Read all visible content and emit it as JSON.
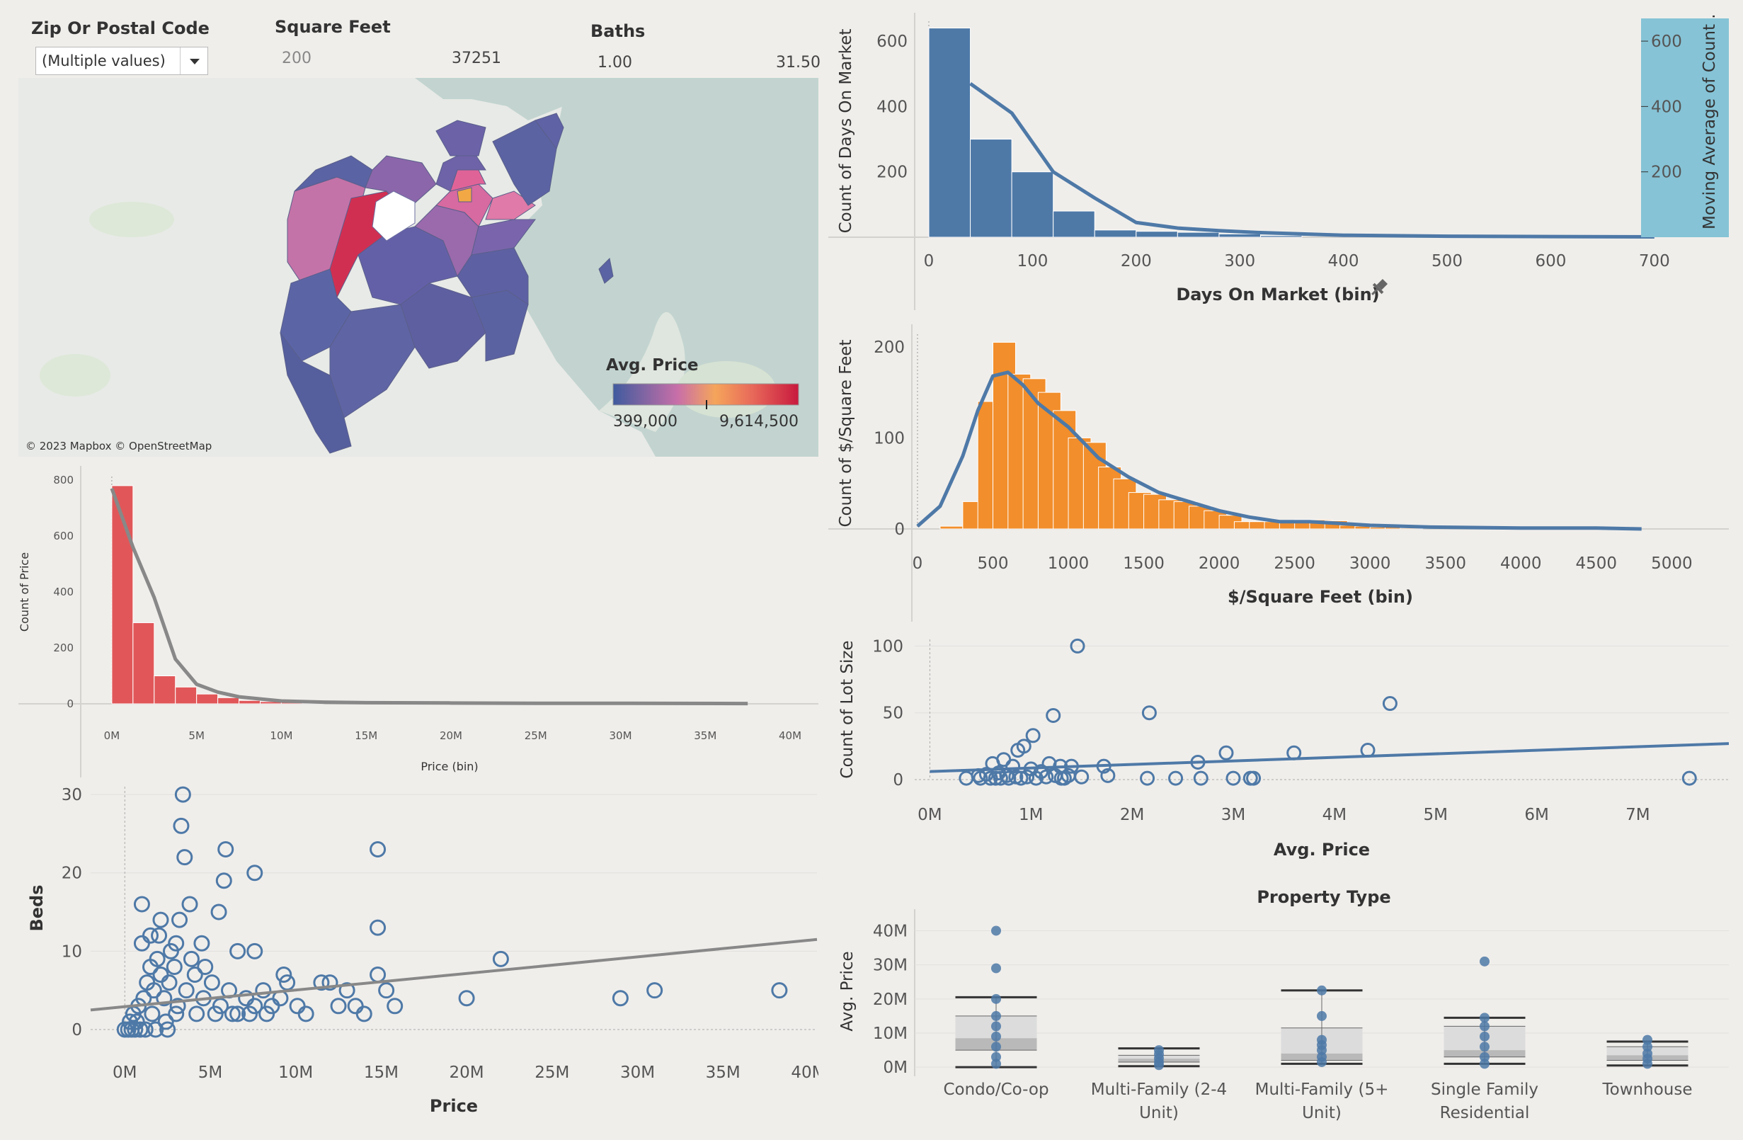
{
  "filters": {
    "zip": {
      "title": "Zip Or Postal Code",
      "value": "(Multiple values)"
    },
    "sqft": {
      "title": "Square Feet",
      "min": "200",
      "max": "37251"
    },
    "baths": {
      "title": "Baths",
      "min": "1.00",
      "max": "31.50"
    }
  },
  "map": {
    "legend_title": "Avg. Price",
    "legend_min": "399,000",
    "legend_max": "9,614,500",
    "attribution": "© 2023 Mapbox © OpenStreetMap",
    "colors": {
      "water": "#c3d4d0",
      "land": "#e9ebe8",
      "low": "#4b5e9c",
      "mid": "#c96fa8",
      "high": "#d42c4d",
      "orange": "#f2a844"
    }
  },
  "chart_data": [
    {
      "id": "days",
      "type": "bar",
      "xlabel": "Days On Market (bin)",
      "ylabel": "Count of Days On Market",
      "right_axis_label": "Moving Average of Count ..",
      "x": [
        0,
        40,
        80,
        120,
        160,
        200,
        240,
        280,
        320
      ],
      "values": [
        640,
        300,
        200,
        80,
        22,
        18,
        15,
        10,
        5
      ],
      "line": {
        "x": [
          40,
          80,
          120,
          160,
          200,
          240,
          280,
          320,
          400,
          500,
          600,
          700
        ],
        "y": [
          470,
          380,
          200,
          120,
          45,
          28,
          20,
          14,
          6,
          3,
          2,
          1
        ]
      },
      "xlim": [
        0,
        750
      ],
      "ylim": [
        0,
        650
      ],
      "xticks": [
        "0",
        "100",
        "200",
        "300",
        "400",
        "500",
        "600",
        "700"
      ],
      "yticks": [
        "200",
        "400",
        "600"
      ],
      "color": "#4e79a7"
    },
    {
      "id": "ppsf",
      "type": "bar",
      "xlabel": "$/Square Feet (bin)",
      "ylabel": "Count of $/Square Feet",
      "x": [
        150,
        300,
        400,
        500,
        600,
        700,
        800,
        900,
        1000,
        1100,
        1200,
        1300,
        1400,
        1500,
        1600,
        1700,
        1800,
        1900,
        2000,
        2100,
        2200,
        2300,
        2400,
        2500,
        2600,
        2700,
        2800,
        2900,
        3000,
        3100,
        3200
      ],
      "values": [
        3,
        30,
        140,
        205,
        170,
        165,
        150,
        130,
        100,
        95,
        68,
        55,
        40,
        38,
        32,
        30,
        25,
        20,
        15,
        8,
        8,
        8,
        8,
        10,
        10,
        9,
        4,
        3,
        2,
        2,
        1
      ],
      "line": {
        "x": [
          0,
          150,
          300,
          400,
          500,
          600,
          700,
          800,
          1000,
          1200,
          1400,
          1600,
          1800,
          2000,
          2200,
          2400,
          2600,
          2800,
          3000,
          3400,
          4000,
          4500,
          4800
        ],
        "y": [
          3,
          25,
          80,
          130,
          168,
          172,
          158,
          138,
          112,
          78,
          57,
          40,
          30,
          20,
          13,
          8,
          8,
          6,
          4,
          2,
          1,
          1,
          0
        ]
      },
      "xlim": [
        -150,
        5050
      ],
      "ylim": [
        0,
        210
      ],
      "xticks": [
        "0",
        "500",
        "1000",
        "1500",
        "2000",
        "2500",
        "3000",
        "3500",
        "4000",
        "4500",
        "5000"
      ],
      "yticks": [
        "0",
        "100",
        "200"
      ],
      "color": "#f28e2b"
    },
    {
      "id": "price",
      "type": "bar",
      "xlabel": "Price (bin)",
      "ylabel": "Count of Price",
      "x": [
        0,
        1250000,
        2500000,
        3750000,
        5000000,
        6250000,
        7500000,
        8750000,
        10000000,
        11250000
      ],
      "values": [
        780,
        290,
        100,
        60,
        35,
        22,
        12,
        8,
        5,
        3
      ],
      "line": {
        "x": [
          0,
          1250000,
          2500000,
          3750000,
          5000000,
          6250000,
          7500000,
          10000000,
          12500000,
          15000000,
          20000000,
          25000000,
          30000000,
          37500000
        ],
        "y": [
          770,
          560,
          380,
          160,
          70,
          42,
          25,
          10,
          6,
          4,
          3,
          2,
          2,
          1
        ]
      },
      "xlim": [
        -2000000,
        41000000
      ],
      "ylim": [
        0,
        800
      ],
      "xticks": [
        "0M",
        "5M",
        "10M",
        "15M",
        "20M",
        "25M",
        "30M",
        "35M",
        "40M"
      ],
      "yticks": [
        "0",
        "200",
        "400",
        "600",
        "800"
      ],
      "color": "#e15759"
    },
    {
      "id": "lot",
      "type": "scatter",
      "xlabel": "Avg. Price",
      "ylabel": "Count of Lot Size",
      "points": [
        [
          1460000,
          100
        ],
        [
          1220000,
          48
        ],
        [
          2170000,
          50
        ],
        [
          4550000,
          57
        ],
        [
          1020000,
          33
        ],
        [
          930000,
          25
        ],
        [
          870000,
          22
        ],
        [
          4330000,
          22
        ],
        [
          3600000,
          20
        ],
        [
          2930000,
          20
        ],
        [
          730000,
          15
        ],
        [
          620000,
          12
        ],
        [
          2650000,
          13
        ],
        [
          1180000,
          12
        ],
        [
          1290000,
          10
        ],
        [
          1400000,
          10
        ],
        [
          1720000,
          10
        ],
        [
          820000,
          10
        ],
        [
          1000000,
          8
        ],
        [
          1100000,
          6
        ],
        [
          680000,
          5
        ],
        [
          560000,
          4
        ],
        [
          480000,
          3
        ],
        [
          760000,
          3
        ],
        [
          1240000,
          3
        ],
        [
          1370000,
          3
        ],
        [
          1760000,
          3
        ],
        [
          1500000,
          2
        ],
        [
          360000,
          1
        ],
        [
          500000,
          1
        ],
        [
          600000,
          1
        ],
        [
          650000,
          1
        ],
        [
          700000,
          1
        ],
        [
          780000,
          1
        ],
        [
          850000,
          2
        ],
        [
          900000,
          1
        ],
        [
          960000,
          2
        ],
        [
          1050000,
          1
        ],
        [
          1150000,
          2
        ],
        [
          1300000,
          1
        ],
        [
          1330000,
          1
        ],
        [
          2150000,
          1
        ],
        [
          2430000,
          1
        ],
        [
          2680000,
          1
        ],
        [
          3000000,
          1
        ],
        [
          3170000,
          1
        ],
        [
          3200000,
          1
        ],
        [
          7510000,
          1
        ]
      ],
      "trend": {
        "x": [
          0,
          7900000
        ],
        "y": [
          6,
          27
        ]
      },
      "xlim": [
        -150000,
        7900000
      ],
      "ylim": [
        0,
        105
      ],
      "xticks": [
        "0M",
        "1M",
        "2M",
        "3M",
        "4M",
        "5M",
        "6M",
        "7M"
      ],
      "yticks": [
        "0",
        "50",
        "100"
      ],
      "color": "#4e79a7"
    },
    {
      "id": "beds",
      "type": "scatter",
      "xlabel": "Price",
      "ylabel": "Beds",
      "points": [
        [
          3400000,
          30
        ],
        [
          3300000,
          26
        ],
        [
          3500000,
          22
        ],
        [
          5900000,
          23
        ],
        [
          14800000,
          23
        ],
        [
          5800000,
          19
        ],
        [
          7600000,
          20
        ],
        [
          14800000,
          13
        ],
        [
          22000000,
          9
        ],
        [
          14800000,
          7
        ],
        [
          15300000,
          5
        ],
        [
          15800000,
          3
        ],
        [
          20000000,
          4
        ],
        [
          29000000,
          4
        ],
        [
          31000000,
          5
        ],
        [
          38300000,
          5
        ],
        [
          1000000,
          16
        ],
        [
          3800000,
          16
        ],
        [
          5500000,
          15
        ],
        [
          2100000,
          14
        ],
        [
          3200000,
          14
        ],
        [
          1500000,
          12
        ],
        [
          4500000,
          11
        ],
        [
          6600000,
          10
        ],
        [
          7600000,
          10
        ],
        [
          9500000,
          6
        ],
        [
          9300000,
          7
        ],
        [
          11500000,
          6
        ],
        [
          12000000,
          6
        ],
        [
          13000000,
          5
        ],
        [
          12500000,
          3
        ],
        [
          13500000,
          3
        ],
        [
          14000000,
          2
        ],
        [
          300000,
          1
        ],
        [
          500000,
          2
        ],
        [
          800000,
          3
        ],
        [
          1100000,
          4
        ],
        [
          1300000,
          6
        ],
        [
          1500000,
          8
        ],
        [
          1700000,
          5
        ],
        [
          1900000,
          9
        ],
        [
          2100000,
          7
        ],
        [
          2300000,
          4
        ],
        [
          2600000,
          6
        ],
        [
          2900000,
          8
        ],
        [
          3100000,
          3
        ],
        [
          3600000,
          5
        ],
        [
          4100000,
          7
        ],
        [
          4600000,
          4
        ],
        [
          5100000,
          6
        ],
        [
          5600000,
          3
        ],
        [
          6100000,
          5
        ],
        [
          6600000,
          2
        ],
        [
          7100000,
          4
        ],
        [
          7600000,
          3
        ],
        [
          8100000,
          5
        ],
        [
          8600000,
          3
        ],
        [
          9100000,
          4
        ],
        [
          10100000,
          3
        ],
        [
          10600000,
          2
        ],
        [
          0,
          0
        ],
        [
          200000,
          0
        ],
        [
          400000,
          0
        ],
        [
          600000,
          0
        ],
        [
          900000,
          0
        ],
        [
          1200000,
          0
        ],
        [
          1800000,
          0
        ],
        [
          2500000,
          0
        ],
        [
          700000,
          1
        ],
        [
          1600000,
          2
        ],
        [
          2400000,
          1
        ],
        [
          3000000,
          2
        ],
        [
          4200000,
          2
        ],
        [
          5300000,
          2
        ],
        [
          6300000,
          2
        ],
        [
          7300000,
          2
        ],
        [
          8300000,
          2
        ],
        [
          1000000,
          11
        ],
        [
          2000000,
          12
        ],
        [
          2700000,
          10
        ],
        [
          3000000,
          11
        ],
        [
          3900000,
          9
        ],
        [
          4700000,
          8
        ]
      ],
      "trend": {
        "x": [
          -2000000,
          40500000
        ],
        "y": [
          2.5,
          11.5
        ]
      },
      "xlim": [
        -2000000,
        40500000
      ],
      "ylim": [
        0,
        31
      ],
      "xticks": [
        "0M",
        "5M",
        "10M",
        "15M",
        "20M",
        "25M",
        "30M",
        "35M",
        "40M"
      ],
      "yticks": [
        "0",
        "10",
        "20",
        "30"
      ],
      "color": "#4e79a7"
    },
    {
      "id": "boxplot",
      "type": "box",
      "title": "Property Type",
      "ylabel": "Avg. Price",
      "categories": [
        "Condo/Co-op",
        "Multi-Family (2-4 Unit)",
        "Multi-Family (5+ Unit)",
        "Single Family Residential",
        "Townhouse"
      ],
      "boxes": [
        {
          "whisker_low": 0,
          "q1": 5000000,
          "median": 8500000,
          "q3": 15000000,
          "whisker_high": 20500000,
          "points": [
            40000000,
            29000000,
            20000000,
            15000000,
            12000000,
            9000000,
            6000000,
            3000000,
            1000000
          ]
        },
        {
          "whisker_low": 300000,
          "q1": 1500000,
          "median": 2500000,
          "q3": 3500000,
          "whisker_high": 5500000,
          "points": [
            5000000,
            3800000,
            2600000,
            1500000,
            600000
          ]
        },
        {
          "whisker_low": 1000000,
          "q1": 2000000,
          "median": 4000000,
          "q3": 11500000,
          "whisker_high": 22500000,
          "points": [
            22500000,
            15000000,
            8000000,
            6500000,
            5000000,
            3000000,
            1500000
          ]
        },
        {
          "whisker_low": 1000000,
          "q1": 3000000,
          "median": 5000000,
          "q3": 12000000,
          "whisker_high": 14500000,
          "points": [
            31000000,
            14500000,
            12000000,
            9000000,
            6000000,
            3000000,
            1000000
          ]
        },
        {
          "whisker_low": 500000,
          "q1": 2000000,
          "median": 3500000,
          "q3": 6000000,
          "whisker_high": 7500000,
          "points": [
            8000000,
            6000000,
            4000000,
            2500000,
            1000000
          ]
        }
      ],
      "ylim": [
        -1000000,
        43000000
      ],
      "yticks": [
        "0M",
        "10M",
        "20M",
        "30M",
        "40M"
      ],
      "color": "#4e79a7"
    }
  ]
}
